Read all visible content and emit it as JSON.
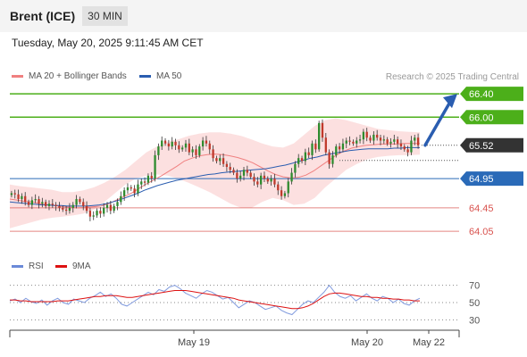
{
  "header": {
    "title": "Brent (ICE)",
    "timeframe": "30 MIN"
  },
  "datetime": "Tuesday, May 20, 2025 9:11:45 AM CET",
  "legend": {
    "item1": {
      "label": "MA 20 + Bollinger Bands",
      "color": "#f08080"
    },
    "item2": {
      "label": "MA 50",
      "color": "#2a5db0"
    },
    "credit": "Research © 2025 Trading Central"
  },
  "rsi_legend": {
    "item1": {
      "label": "RSI",
      "color": "#6b8ad8"
    },
    "item2": {
      "label": "9MA",
      "color": "#dd1111"
    }
  },
  "chart_data": [
    {
      "type": "candlestick",
      "ylim": [
        63.7,
        66.6
      ],
      "levels": [
        {
          "label": "66.40",
          "value": 66.4,
          "style": "resistance",
          "color": "#4caf1a"
        },
        {
          "label": "66.00",
          "value": 66.0,
          "style": "resistance",
          "color": "#4caf1a"
        },
        {
          "label": "65.52",
          "value": 65.52,
          "style": "last-price",
          "color": "#333333"
        },
        {
          "label": "64.95",
          "value": 64.95,
          "style": "pivot",
          "color": "#2a6ab8"
        },
        {
          "label": "64.45",
          "value": 64.45,
          "style": "support",
          "color": "#d9534f"
        },
        {
          "label": "64.05",
          "value": 64.05,
          "style": "support",
          "color": "#d9534f"
        }
      ],
      "x_ticks": [
        "May 19",
        "May 20",
        "May 22"
      ],
      "closes": [
        64.7,
        64.68,
        64.6,
        64.65,
        64.55,
        64.5,
        64.58,
        64.6,
        64.52,
        64.55,
        64.48,
        64.52,
        64.5,
        64.48,
        64.45,
        64.42,
        64.4,
        64.45,
        64.5,
        64.6,
        64.55,
        64.48,
        64.4,
        64.3,
        64.32,
        64.4,
        64.35,
        64.45,
        64.5,
        64.4,
        64.48,
        64.55,
        64.65,
        64.75,
        64.8,
        64.78,
        64.7,
        64.85,
        64.9,
        64.88,
        65.0,
        64.95,
        65.35,
        65.5,
        65.6,
        65.55,
        65.5,
        65.58,
        65.52,
        65.45,
        65.48,
        65.55,
        65.4,
        65.45,
        65.35,
        65.5,
        65.6,
        65.55,
        65.45,
        65.3,
        65.25,
        65.3,
        65.2,
        65.15,
        65.1,
        65.05,
        64.95,
        65.0,
        65.1,
        65.05,
        64.98,
        64.9,
        64.85,
        65.0,
        64.95,
        64.9,
        64.95,
        64.85,
        64.75,
        64.65,
        64.7,
        64.9,
        65.05,
        65.2,
        65.3,
        65.25,
        65.4,
        65.35,
        65.55,
        65.45,
        65.9,
        65.65,
        65.4,
        65.2,
        65.35,
        65.5,
        65.45,
        65.55,
        65.6,
        65.58,
        65.55,
        65.6,
        65.62,
        65.75,
        65.65,
        65.6,
        65.7,
        65.65,
        65.6,
        65.62,
        65.55,
        65.58,
        65.62,
        65.55,
        65.5,
        65.45,
        65.4,
        65.6,
        65.65,
        65.52
      ],
      "ma50": [
        64.55,
        64.54,
        64.53,
        64.52,
        64.51,
        64.5,
        64.5,
        64.49,
        64.49,
        64.48,
        64.48,
        64.48,
        64.48,
        64.49,
        64.5,
        64.52,
        64.55,
        64.58,
        64.62,
        64.66,
        64.7,
        64.75,
        64.79,
        64.83,
        64.86,
        64.89,
        64.92,
        64.94,
        64.96,
        64.98,
        65.0,
        65.02,
        65.03,
        65.05,
        65.06,
        65.07,
        65.08,
        65.09,
        65.1,
        65.11,
        65.12,
        65.14,
        65.16,
        65.18,
        65.21,
        65.24,
        65.27,
        65.3,
        65.32,
        65.35,
        65.37,
        65.39,
        65.41,
        65.43,
        65.44,
        65.45,
        65.46,
        65.46,
        65.46,
        65.46,
        65.47,
        65.47,
        65.48,
        65.48,
        65.48
      ],
      "ma20": [
        64.6,
        64.58,
        64.56,
        64.55,
        64.52,
        64.5,
        64.49,
        64.47,
        64.46,
        64.45,
        64.46,
        64.47,
        64.48,
        64.52,
        64.58,
        64.64,
        64.7,
        64.78,
        64.86,
        64.93,
        65.0,
        65.08,
        65.16,
        65.25,
        65.3,
        65.34,
        65.36,
        65.37,
        65.36,
        65.34,
        65.31,
        65.27,
        65.22,
        65.15,
        65.08,
        65.02,
        64.98,
        64.96,
        64.97,
        65.01,
        65.08,
        65.17,
        65.26,
        65.35,
        65.42,
        65.47,
        65.5,
        65.52,
        65.53,
        65.54,
        65.54,
        65.54,
        65.55,
        65.55,
        65.55
      ],
      "bb_upper": [
        64.85,
        64.82,
        64.8,
        64.78,
        64.76,
        64.72,
        64.72,
        64.75,
        64.8,
        64.88,
        64.98,
        65.1,
        65.25,
        65.4,
        65.5,
        65.58,
        65.62,
        65.68,
        65.72,
        65.74,
        65.74,
        65.72,
        65.68,
        65.62,
        65.55,
        65.5,
        65.48,
        65.55,
        65.7,
        65.85,
        65.95,
        65.98,
        65.95,
        65.9,
        65.85,
        65.8,
        65.78,
        65.76,
        65.75,
        65.74
      ],
      "bb_lower": [
        64.1,
        64.15,
        64.2,
        64.25,
        64.28,
        64.3,
        64.32,
        64.35,
        64.42,
        64.55,
        64.7,
        64.85,
        64.95,
        65.0,
        65.02,
        65.0,
        64.95,
        64.88,
        64.8,
        64.72,
        64.62,
        64.52,
        64.45,
        64.45,
        64.55,
        64.62,
        64.58,
        64.5,
        64.52,
        64.62,
        64.8,
        64.95,
        65.1,
        65.2,
        65.28,
        65.32,
        65.34,
        65.35,
        65.35,
        65.36
      ]
    },
    {
      "type": "line",
      "ylim": [
        20,
        80
      ],
      "y_ticks": [
        "70",
        "50",
        "30"
      ],
      "series": [
        {
          "name": "RSI",
          "color": "#6b8ad8",
          "values": [
            52,
            54,
            50,
            55,
            51,
            49,
            53,
            47,
            52,
            55,
            50,
            48,
            54,
            52,
            50,
            55,
            58,
            62,
            57,
            60,
            55,
            48,
            46,
            50,
            54,
            58,
            62,
            59,
            65,
            63,
            68,
            70,
            66,
            61,
            58,
            55,
            60,
            64,
            62,
            58,
            54,
            56,
            50,
            44,
            48,
            52,
            50,
            46,
            42,
            44,
            46,
            41,
            38,
            36,
            42,
            48,
            52,
            50,
            56,
            62,
            70,
            62,
            57,
            55,
            58,
            52,
            56,
            60,
            55,
            52,
            57,
            55,
            50,
            54,
            49,
            47,
            52,
            55
          ]
        },
        {
          "name": "9MA",
          "color": "#dd1111",
          "values": [
            53,
            53,
            52,
            52,
            51,
            51,
            51,
            51,
            51,
            52,
            52,
            52,
            53,
            54,
            55,
            56,
            57,
            57,
            58,
            58,
            58,
            57,
            56,
            56,
            57,
            58,
            59,
            60,
            61,
            62,
            63,
            64,
            64,
            64,
            63,
            62,
            61,
            60,
            59,
            58,
            57,
            56,
            55,
            53,
            52,
            51,
            50,
            49,
            48,
            47,
            46,
            45,
            44,
            43,
            43,
            44,
            46,
            49,
            53,
            57,
            60,
            61,
            61,
            60,
            59,
            58,
            57,
            57,
            56,
            56,
            55,
            55,
            54,
            54,
            53,
            53,
            52,
            52
          ]
        }
      ]
    }
  ]
}
